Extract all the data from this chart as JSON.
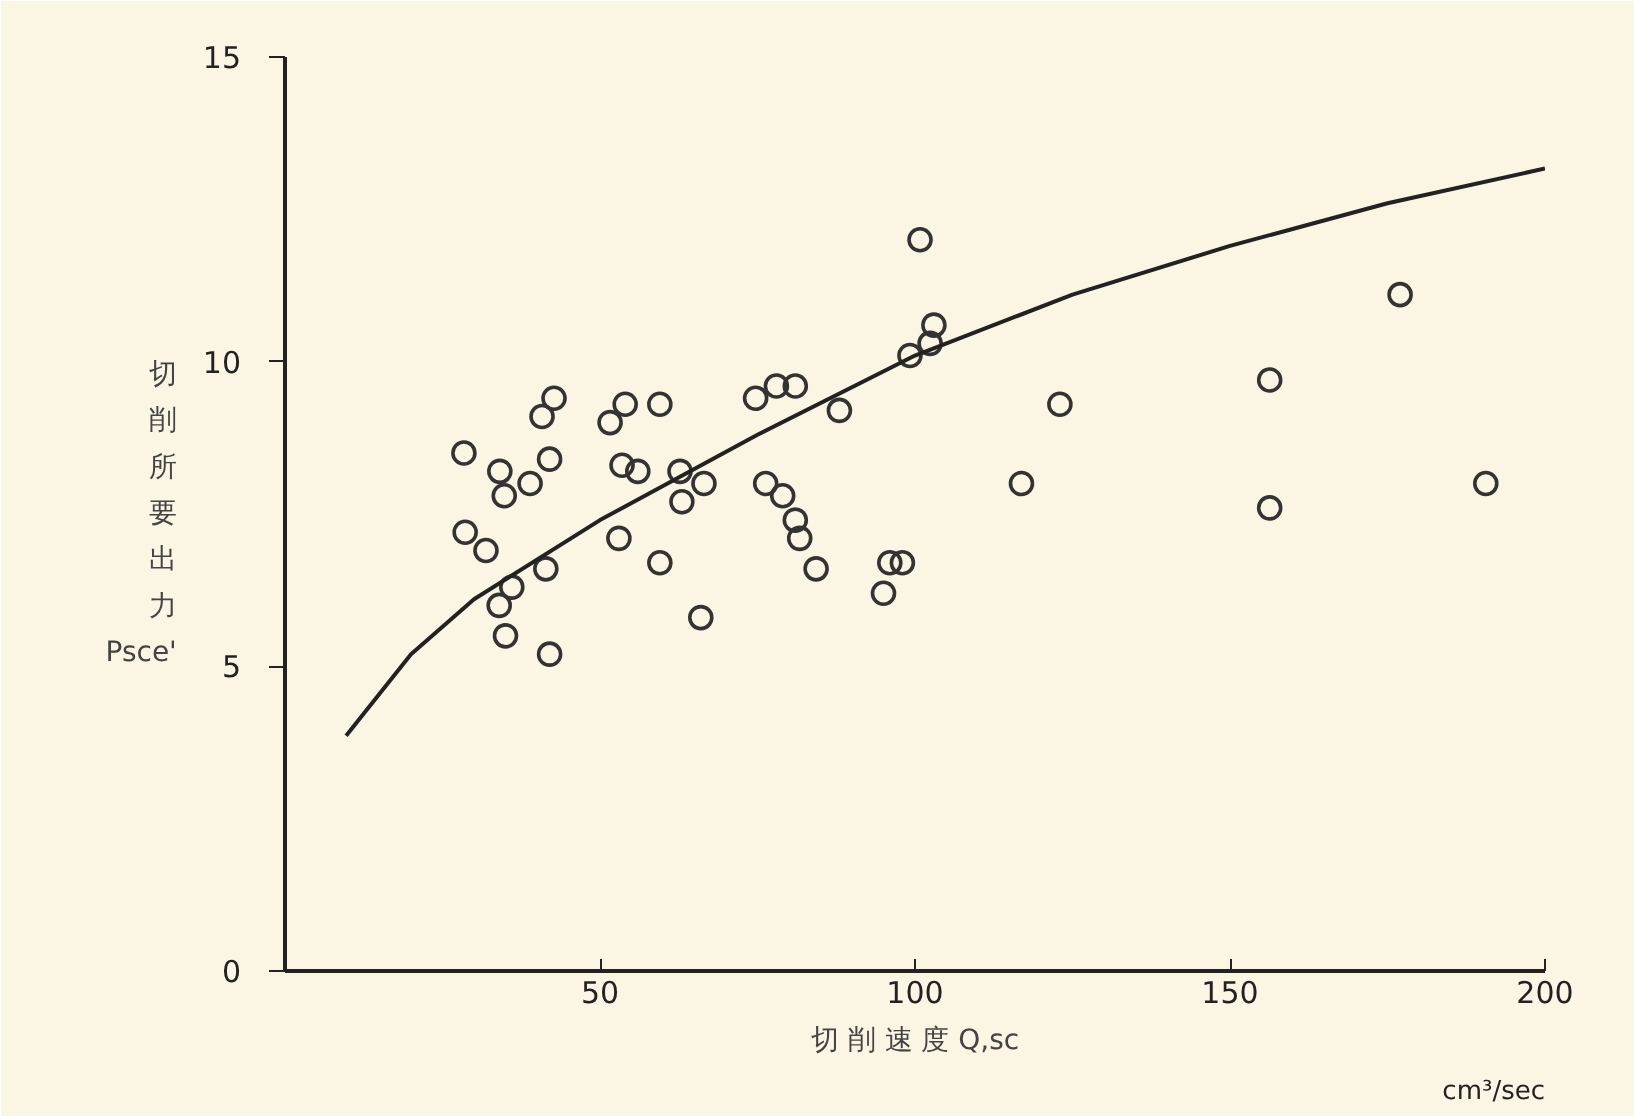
{
  "chart_data": {
    "type": "scatter",
    "xlabel": "切 削 速 度 Q,sc",
    "ylabel": "切削所要出力 Psce'",
    "annotations": [
      "cm³/sec"
    ],
    "xlim": [
      0,
      200
    ],
    "ylim": [
      0,
      15
    ],
    "xticks": [
      50,
      100,
      150,
      200
    ],
    "yticks": [
      0,
      5,
      10,
      15
    ],
    "grid": false,
    "marker": "circle",
    "series": [
      {
        "color": "#333333",
        "x": [
          28.4,
          28.6,
          31.9,
          34.1,
          34.8,
          35,
          34,
          36,
          38.9,
          40.8,
          42.7,
          42,
          41.4,
          42,
          51.6,
          54,
          53.5,
          56,
          59.5,
          59.5,
          53,
          62.7,
          63,
          66.5,
          66,
          74.7,
          78,
          81,
          76.3,
          79,
          81,
          81.7,
          84.3,
          88,
          95,
          96,
          98,
          100.8,
          103,
          102.4,
          99.2,
          123,
          116.9,
          156.3,
          156.3,
          177,
          190.6
        ],
        "values": [
          8.5,
          7.2,
          6.9,
          8.2,
          7.8,
          5.5,
          6.0,
          6.3,
          8.0,
          9.1,
          9.4,
          8.4,
          6.6,
          5.2,
          9.0,
          9.3,
          8.3,
          8.2,
          9.3,
          6.7,
          7.1,
          8.2,
          7.7,
          8.0,
          5.8,
          9.4,
          9.6,
          9.6,
          8.0,
          7.8,
          7.4,
          7.1,
          6.6,
          9.2,
          6.2,
          6.7,
          6.7,
          12.0,
          10.6,
          10.3,
          10.1,
          9.3,
          8.0,
          9.7,
          7.6,
          11.1,
          8.0
        ]
      },
      {
        "type": "line",
        "color": "#222222",
        "marker": "none",
        "line_style": "solid",
        "x": [
          9.7,
          20,
          30,
          50,
          75,
          100,
          125,
          150,
          175,
          200
        ],
        "values": [
          3.86,
          5.2,
          6.1,
          7.4,
          8.8,
          10.1,
          11.1,
          11.9,
          12.6,
          13.17
        ]
      }
    ]
  }
}
